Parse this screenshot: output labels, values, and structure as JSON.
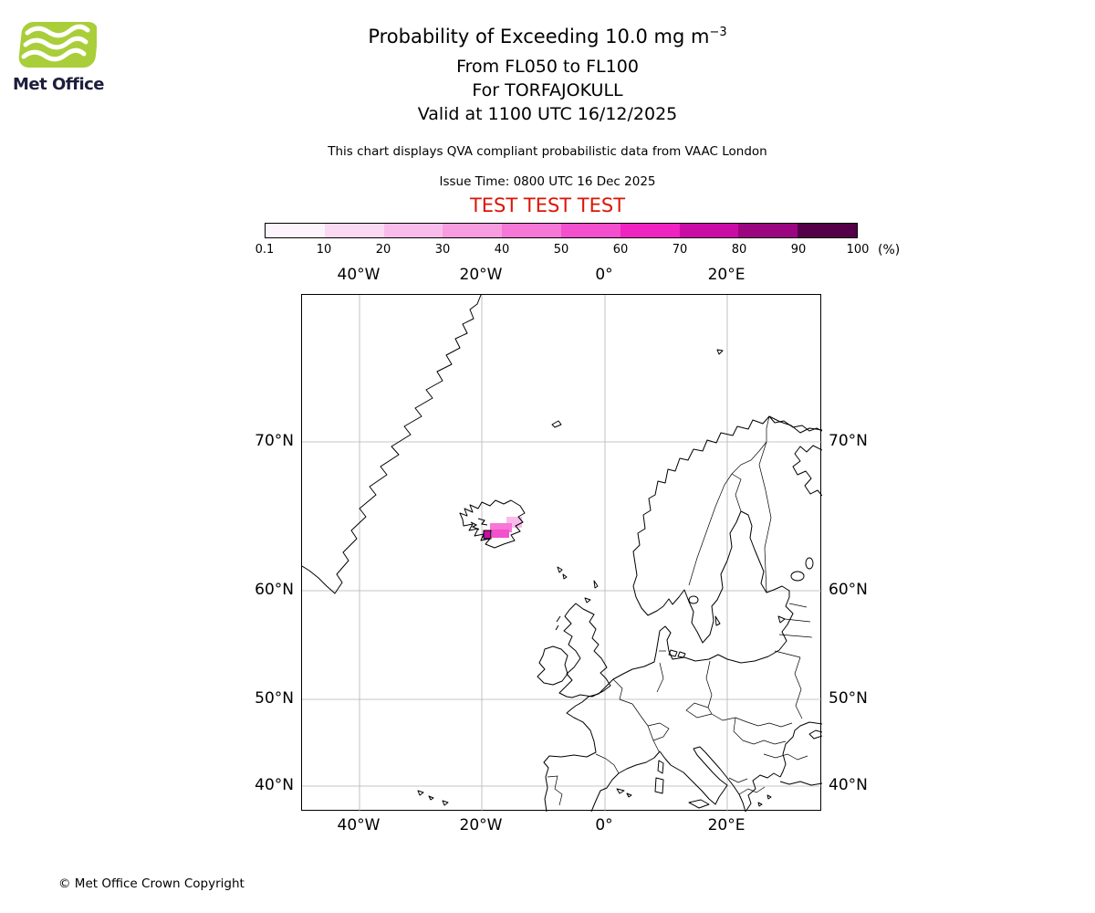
{
  "logo": {
    "brand": "Met Office",
    "green": "#a9ce39",
    "text_color": "#1d1d3c"
  },
  "header": {
    "title_main": "Probability of Exceeding 10.0 mg m",
    "title_sup": "−3",
    "subtitle_flight_levels": "From FL050 to FL100",
    "subtitle_volcano": "For TORFAJOKULL",
    "subtitle_valid": "Valid at 1100 UTC 16/12/2025",
    "description": "This chart displays QVA compliant probabilistic data from VAAC London",
    "issue_time": "Issue Time: 0800 UTC 16 Dec 2025",
    "test_banner": "TEST TEST TEST",
    "test_color": "#dd1407"
  },
  "colorbar": {
    "unit": "(%)",
    "ticks": [
      "0.1",
      "10",
      "20",
      "30",
      "40",
      "50",
      "60",
      "70",
      "80",
      "90",
      "100"
    ],
    "colors": [
      "#fdf3fb",
      "#fbd9f2",
      "#f9bcea",
      "#f89ce0",
      "#f677d6",
      "#f44fcc",
      "#ee23c1",
      "#ca0ca6",
      "#9b0680",
      "#530049"
    ]
  },
  "map_axes": {
    "top": [
      "40°W",
      "20°W",
      "0°",
      "20°E"
    ],
    "bottom": [
      "40°W",
      "20°W",
      "0°",
      "20°E"
    ],
    "left": [
      "70°N",
      "60°N",
      "50°N",
      "40°N"
    ],
    "right": [
      "70°N",
      "60°N",
      "50°N",
      "40°N"
    ]
  },
  "footer": {
    "copyright": "© Met Office Crown Copyright"
  },
  "chart_data": {
    "type": "heatmap",
    "title": "Probability of Exceeding 10.0 mg m⁻³",
    "flight_layer": "FL050 to FL100",
    "volcano": "TORFAJOKULL",
    "valid_time": "1100 UTC 16/12/2025",
    "issue_time": "0800 UTC 16 Dec 2025",
    "source": "QVA compliant probabilistic data from VAAC London",
    "status": "TEST",
    "projection": "Mercator",
    "legend_position": "top",
    "grid": true,
    "extent": {
      "lon_min": -49.5,
      "lon_max": 35.5,
      "lat_min": 36.8,
      "lat_max": 76.8
    },
    "grid_lon_deg": [
      -40,
      -20,
      0,
      20
    ],
    "grid_lat_deg": [
      70,
      60,
      50,
      40
    ],
    "probability_bins_percent": [
      0.1,
      10,
      20,
      30,
      40,
      50,
      60,
      70,
      80,
      90,
      100
    ],
    "ash_cloud": {
      "location": "southern/eastern Iceland near Torfajökull",
      "approx_center": {
        "lat": 64.5,
        "lon": -17.0
      },
      "cells": [
        {
          "lon_range": [
            -15.8,
            -13.3
          ],
          "lat_range": [
            64.7,
            65.4
          ],
          "percent_bin": "20–30"
        },
        {
          "lon_range": [
            -18.7,
            -15.1
          ],
          "lat_range": [
            64.5,
            65.0
          ],
          "percent_bin": "40–50"
        },
        {
          "lon_range": [
            -18.4,
            -15.6
          ],
          "lat_range": [
            64.1,
            64.6
          ],
          "percent_bin": "50–60"
        },
        {
          "lon_range": [
            -19.7,
            -18.5
          ],
          "lat_range": [
            64.0,
            64.5
          ],
          "percent_bin": "70–80"
        }
      ]
    }
  }
}
